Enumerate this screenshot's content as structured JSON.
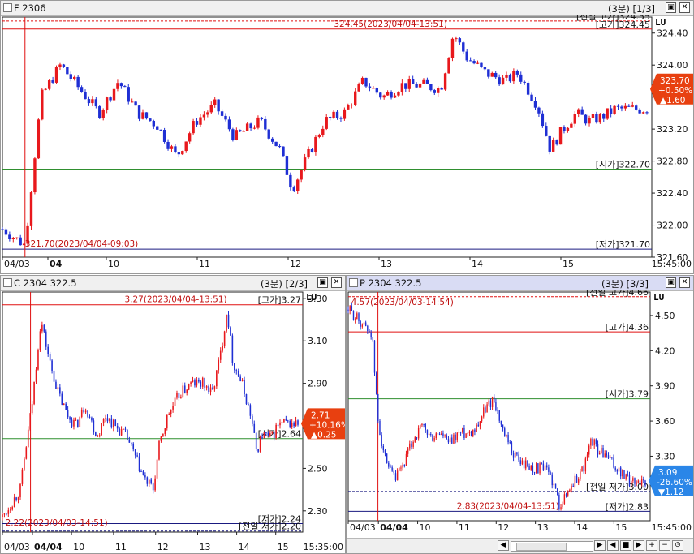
{
  "colors": {
    "up": "#e8181c",
    "down": "#1f2fd4",
    "hline_red": "#e01010",
    "hline_green": "#2f8f2f",
    "hline_navy": "#1a1a80",
    "price_dash": "#c03030",
    "badge": "#e84010",
    "badge_blue": "#2a86e8"
  },
  "panes": [
    {
      "id": "futures",
      "title": "F 2306",
      "page": "(3분) [1/3]",
      "lu": "LU",
      "icons": [
        "restore-icon",
        "close-icon"
      ],
      "time_label": "15:45:00",
      "chart_data": {
        "type": "candlestick",
        "series_name": "F 2306",
        "ylim": [
          321.6,
          324.6
        ],
        "yticks": [
          "324.40",
          "324.00",
          "323.60",
          "323.20",
          "322.80",
          "322.40",
          "322.00",
          "321.60"
        ],
        "ytick_values": [
          324.4,
          324.0,
          323.6,
          323.2,
          322.8,
          322.4,
          322.0,
          321.6
        ],
        "xticks": [
          "04/03",
          "04",
          "10",
          "11",
          "12",
          "13",
          "14",
          "15"
        ],
        "xtick_pos": [
          0,
          0.07,
          0.16,
          0.3,
          0.44,
          0.58,
          0.72,
          0.86
        ],
        "bold_xtick": "04",
        "hlines": [
          {
            "label": "[전일 고가]324.55",
            "value": 324.55,
            "style": "red-dash"
          },
          {
            "label": "[고가]324.45",
            "value": 324.45,
            "style": "red"
          },
          {
            "label": "[시가]322.70",
            "value": 322.7,
            "style": "green"
          },
          {
            "label": "[저가]321.70",
            "value": 321.7,
            "style": "navy"
          }
        ],
        "annotations": [
          {
            "text": "324.45(2023/04/04-13:51)",
            "value": 324.45,
            "x": 0.69
          },
          {
            "text": "321.70(2023/04/04-09:03)",
            "value": 321.7,
            "x": 0.035
          }
        ],
        "vline_x": 0.035,
        "last": {
          "price": "323.70",
          "change": "+0.50%",
          "diff": "▲1.60",
          "value": 323.7
        },
        "anchors": [
          [
            0,
            321.95
          ],
          [
            0.035,
            321.75
          ],
          [
            0.06,
            323.6
          ],
          [
            0.09,
            324.0
          ],
          [
            0.12,
            323.7
          ],
          [
            0.15,
            323.4
          ],
          [
            0.18,
            323.8
          ],
          [
            0.21,
            323.4
          ],
          [
            0.24,
            323.25
          ],
          [
            0.27,
            322.85
          ],
          [
            0.3,
            323.3
          ],
          [
            0.33,
            323.5
          ],
          [
            0.36,
            323.1
          ],
          [
            0.4,
            323.3
          ],
          [
            0.43,
            322.95
          ],
          [
            0.45,
            322.45
          ],
          [
            0.47,
            322.8
          ],
          [
            0.5,
            323.3
          ],
          [
            0.53,
            323.4
          ],
          [
            0.56,
            323.8
          ],
          [
            0.59,
            323.6
          ],
          [
            0.62,
            323.75
          ],
          [
            0.65,
            323.75
          ],
          [
            0.68,
            323.7
          ],
          [
            0.7,
            324.4
          ],
          [
            0.72,
            324.1
          ],
          [
            0.75,
            323.9
          ],
          [
            0.78,
            323.8
          ],
          [
            0.8,
            323.9
          ],
          [
            0.83,
            323.5
          ],
          [
            0.85,
            322.95
          ],
          [
            0.87,
            323.2
          ],
          [
            0.89,
            323.4
          ],
          [
            0.91,
            323.3
          ],
          [
            0.93,
            323.35
          ],
          [
            0.95,
            323.45
          ],
          [
            0.965,
            323.45
          ]
        ]
      }
    },
    {
      "id": "call",
      "title": "C 2304 322.5",
      "page": "(3분) [2/3]",
      "lu": "LU",
      "icons": [
        "restore-icon",
        "close-icon"
      ],
      "time_label": "15:35:00",
      "chart_data": {
        "type": "candlestick",
        "series_name": "C 2304 322.5",
        "ylim": [
          2.2,
          3.33
        ],
        "yticks": [
          "3.30",
          "3.10",
          "2.90",
          "2.70",
          "2.50",
          "2.30"
        ],
        "ytick_values": [
          3.3,
          3.1,
          2.9,
          2.7,
          2.5,
          2.3
        ],
        "xticks": [
          "04/03",
          "04/04",
          "10",
          "11",
          "12",
          "13",
          "14",
          "15"
        ],
        "xtick_pos": [
          0,
          0.1,
          0.23,
          0.37,
          0.51,
          0.65,
          0.78,
          0.91
        ],
        "bold_xtick": "04/04",
        "hlines": [
          {
            "label": "[고가]3.27",
            "value": 3.27,
            "style": "red"
          },
          {
            "label": "[시가]2.64",
            "value": 2.64,
            "style": "green"
          },
          {
            "label": "[저가]2.24",
            "value": 2.24,
            "style": "navy"
          },
          {
            "label": "[전일 저가]2.20",
            "value": 2.205,
            "style": "navy-dash"
          }
        ],
        "annotations": [
          {
            "text": "3.27(2023/04/04-13:51)",
            "value": 3.27,
            "x": 0.76
          },
          {
            "text": "2.22(2023/04/03-14:51)",
            "value": 2.22,
            "x": 0.01
          }
        ],
        "vline_x": 0.095,
        "last": {
          "price": "2.71",
          "change": "+10.16%",
          "diff": "▲0.25",
          "value": 2.71
        },
        "anchors": [
          [
            0,
            2.27
          ],
          [
            0.06,
            2.4
          ],
          [
            0.1,
            2.8
          ],
          [
            0.13,
            3.2
          ],
          [
            0.16,
            3.0
          ],
          [
            0.19,
            2.85
          ],
          [
            0.22,
            2.75
          ],
          [
            0.25,
            2.7
          ],
          [
            0.28,
            2.8
          ],
          [
            0.32,
            2.65
          ],
          [
            0.35,
            2.75
          ],
          [
            0.38,
            2.7
          ],
          [
            0.42,
            2.65
          ],
          [
            0.45,
            2.55
          ],
          [
            0.48,
            2.45
          ],
          [
            0.51,
            2.4
          ],
          [
            0.53,
            2.6
          ],
          [
            0.56,
            2.75
          ],
          [
            0.6,
            2.85
          ],
          [
            0.64,
            2.9
          ],
          [
            0.68,
            2.9
          ],
          [
            0.71,
            2.85
          ],
          [
            0.74,
            3.05
          ],
          [
            0.76,
            3.25
          ],
          [
            0.78,
            3.0
          ],
          [
            0.81,
            2.9
          ],
          [
            0.84,
            2.75
          ],
          [
            0.86,
            2.58
          ],
          [
            0.88,
            2.66
          ],
          [
            0.91,
            2.64
          ],
          [
            0.93,
            2.7
          ],
          [
            0.945,
            2.71
          ]
        ]
      }
    },
    {
      "id": "put",
      "title": "P 2304 322.5",
      "page": "(3분) [3/3]",
      "lu": "LU",
      "icons": [
        "restore-icon",
        "close-icon"
      ],
      "time_label": "15:45:00",
      "chart_data": {
        "type": "candlestick",
        "series_name": "P 2304 322.5",
        "ylim": [
          2.75,
          4.7
        ],
        "yticks": [
          "4.50",
          "4.20",
          "3.90",
          "3.60",
          "3.30"
        ],
        "ytick_values": [
          4.5,
          4.2,
          3.9,
          3.6,
          3.3
        ],
        "xticks": [
          "04/03",
          "04/04",
          "10",
          "11",
          "12",
          "13",
          "14",
          "15"
        ],
        "xtick_pos": [
          0,
          0.1,
          0.23,
          0.36,
          0.49,
          0.62,
          0.75,
          0.88
        ],
        "bold_xtick": "04/04",
        "hlines": [
          {
            "label": "[전일 고가]4.66",
            "value": 4.66,
            "style": "red-dash"
          },
          {
            "label": "[고가]4.36",
            "value": 4.36,
            "style": "red"
          },
          {
            "label": "[시가]3.79",
            "value": 3.79,
            "style": "green"
          },
          {
            "label": "[전일 저가]3.00",
            "value": 3.0,
            "style": "navy-dash"
          },
          {
            "label": "[저가]2.83",
            "value": 2.83,
            "style": "navy"
          }
        ],
        "annotations": [
          {
            "text": "4.57(2023/04/03-14:54)",
            "value": 4.57,
            "x": 0.01
          },
          {
            "text": "2.83(2023/04/04-13:51)",
            "value": 2.83,
            "x": 0.71
          }
        ],
        "vline_x": 0.1,
        "last": {
          "price": "3.09",
          "change": "-26.60%",
          "diff": "▼1.12",
          "value": 3.09
        },
        "anchors": [
          [
            0,
            4.55
          ],
          [
            0.04,
            4.45
          ],
          [
            0.08,
            4.35
          ],
          [
            0.1,
            3.6
          ],
          [
            0.13,
            3.2
          ],
          [
            0.16,
            3.1
          ],
          [
            0.19,
            3.25
          ],
          [
            0.22,
            3.45
          ],
          [
            0.25,
            3.55
          ],
          [
            0.28,
            3.45
          ],
          [
            0.31,
            3.5
          ],
          [
            0.34,
            3.4
          ],
          [
            0.37,
            3.5
          ],
          [
            0.4,
            3.5
          ],
          [
            0.43,
            3.55
          ],
          [
            0.46,
            3.7
          ],
          [
            0.49,
            3.8
          ],
          [
            0.52,
            3.5
          ],
          [
            0.55,
            3.35
          ],
          [
            0.58,
            3.25
          ],
          [
            0.62,
            3.2
          ],
          [
            0.65,
            3.2
          ],
          [
            0.68,
            3.15
          ],
          [
            0.71,
            2.9
          ],
          [
            0.73,
            2.95
          ],
          [
            0.75,
            3.05
          ],
          [
            0.78,
            3.15
          ],
          [
            0.8,
            3.25
          ],
          [
            0.82,
            3.45
          ],
          [
            0.84,
            3.35
          ],
          [
            0.87,
            3.3
          ],
          [
            0.9,
            3.2
          ],
          [
            0.92,
            3.15
          ],
          [
            0.94,
            3.1
          ],
          [
            0.95,
            3.09
          ]
        ]
      }
    }
  ],
  "scroll_controls": [
    "scroll-left-icon",
    "scroll-right-icon",
    "prev-icon",
    "next-icon",
    "stop-icon",
    "pause-icon",
    "zoom-in-icon",
    "zoom-out-icon",
    "zoom-reset-icon",
    "zoom-fit-icon"
  ]
}
